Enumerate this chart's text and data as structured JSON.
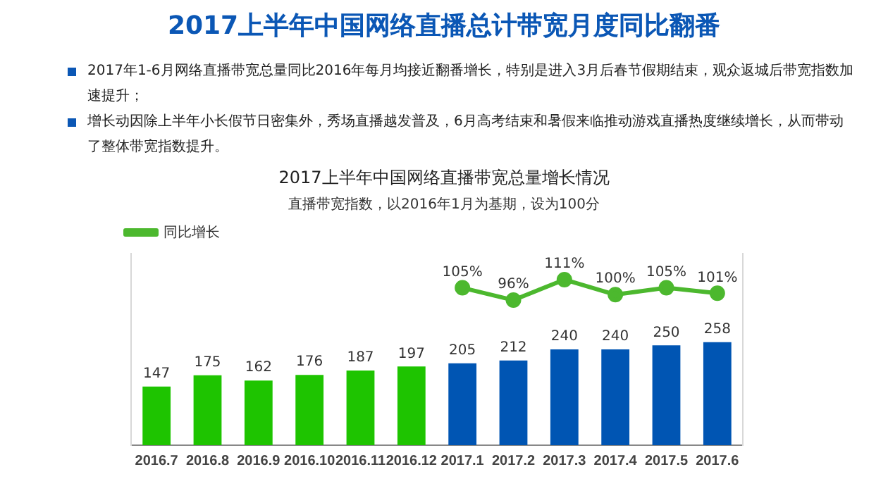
{
  "chart_data": {
    "type": "bar",
    "title": "2017上半年中国网络直播总计带宽月度同比翻番",
    "subtitle": "2017上半年中国网络直播带宽总量增长情况",
    "annotations": [
      "2017年1-6月网络直播带宽总量同比2016年每月均接近翻番增长，特别是进入3月后春节假期结束，观众返城后带宽指数加速提升；",
      "增长动因除上半年小长假节日密集外，秀场直播越发普及，6月高考结束和暑假来临推动游戏直播热度继续增长，从而带动了整体带宽指数提升。",
      "直播带宽指数，以2016年1月为基期，设为100分"
    ],
    "categories": [
      "2016.7",
      "2016.8",
      "2016.9",
      "2016.10",
      "2016.11",
      "2016.12",
      "2017.1",
      "2017.2",
      "2017.3",
      "2017.4",
      "2017.5",
      "2017.6"
    ],
    "series": [
      {
        "colors": [
          "#1ec400",
          "#1ec400",
          "#1ec400",
          "#1ec400",
          "#1ec400",
          "#1ec400",
          "#0055b3",
          "#0055b3",
          "#0055b3",
          "#0055b3",
          "#0055b3",
          "#0055b3"
        ],
        "values": [
          147,
          175,
          162,
          176,
          187,
          197,
          205,
          212,
          240,
          240,
          250,
          258
        ],
        "value_labels": [
          "147",
          "175",
          "162",
          "176",
          "187",
          "197",
          "205",
          "212",
          "240",
          "240",
          "250",
          "258"
        ]
      },
      {
        "type": "line",
        "name": "同比增长",
        "color": "#4cb82e",
        "axis": "y2",
        "values": [
          null,
          null,
          null,
          null,
          null,
          null,
          105,
          96,
          111,
          100,
          105,
          101
        ],
        "value_labels": [
          null,
          null,
          null,
          null,
          null,
          null,
          "105%",
          "96%",
          "111%",
          "100%",
          "105%",
          "101%"
        ]
      }
    ],
    "ylim": [
      0,
      480
    ],
    "y2lim": [
      -10,
      130
    ],
    "tick_labels": "x",
    "legend": "top left",
    "marker": "circle",
    "grid": false
  }
}
